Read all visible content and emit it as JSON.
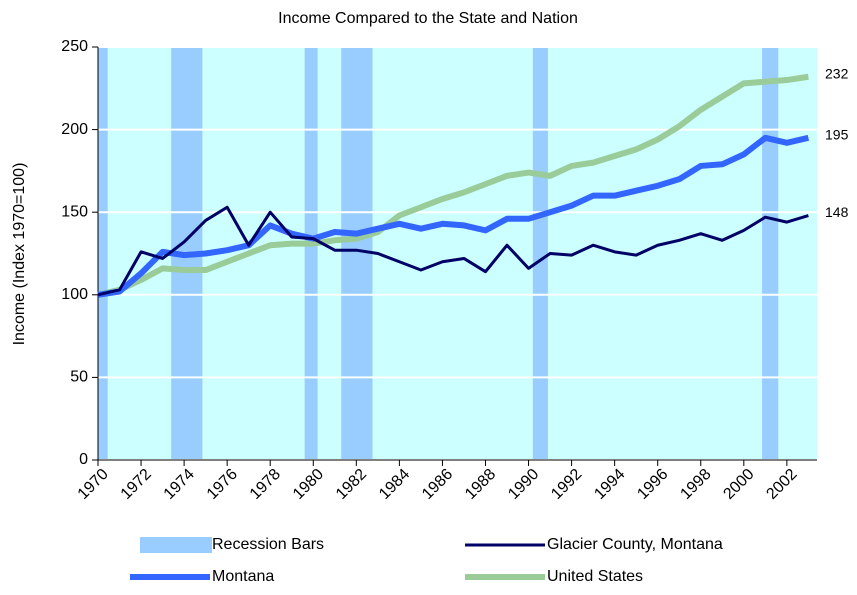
{
  "chart_data": {
    "type": "line",
    "title": "Income Compared to the State and Nation",
    "y_label": "Income (Index 1970=100)",
    "x": [
      1970,
      1971,
      1972,
      1973,
      1974,
      1975,
      1976,
      1977,
      1978,
      1979,
      1980,
      1981,
      1982,
      1983,
      1984,
      1985,
      1986,
      1987,
      1988,
      1989,
      1990,
      1991,
      1992,
      1993,
      1994,
      1995,
      1996,
      1997,
      1998,
      1999,
      2000,
      2001,
      2002,
      2003
    ],
    "xlim": [
      1970,
      2003.4
    ],
    "xticks": [
      1970,
      1972,
      1974,
      1976,
      1978,
      1980,
      1982,
      1984,
      1986,
      1988,
      1990,
      1992,
      1994,
      1996,
      1998,
      2000,
      2002
    ],
    "ylim": [
      0,
      250
    ],
    "yticks": [
      0,
      50,
      100,
      150,
      200,
      250
    ],
    "grid": true,
    "recessions": {
      "name": "Recession Bars",
      "color": "#99ccff",
      "ranges": [
        [
          1970,
          1970.45
        ],
        [
          1973.4,
          1974.85
        ],
        [
          1979.6,
          1980.2
        ],
        [
          1981.3,
          1982.75
        ],
        [
          1990.2,
          1990.9
        ],
        [
          2000.85,
          2001.6
        ]
      ]
    },
    "series": [
      {
        "name": "Glacier County, Montana",
        "color": "#000066",
        "width": 3,
        "values": [
          100,
          103,
          126,
          122,
          132,
          145,
          153,
          130,
          150,
          135,
          134,
          127,
          127,
          125,
          120,
          115,
          120,
          122,
          114,
          130,
          116,
          125,
          124,
          130,
          126,
          124,
          130,
          133,
          137,
          133,
          139,
          147,
          144,
          148
        ]
      },
      {
        "name": "Montana",
        "color": "#3366ff",
        "width": 6,
        "values": [
          100,
          102,
          113,
          126,
          124,
          125,
          127,
          130,
          142,
          137,
          134,
          138,
          137,
          140,
          143,
          140,
          143,
          142,
          139,
          146,
          146,
          150,
          154,
          160,
          160,
          163,
          166,
          170,
          178,
          179,
          185,
          195,
          192,
          195
        ]
      },
      {
        "name": "United States",
        "color": "#99cc99",
        "width": 6,
        "values": [
          100,
          103,
          109,
          116,
          115,
          115,
          120,
          125,
          130,
          131,
          131,
          133,
          134,
          138,
          148,
          153,
          158,
          162,
          167,
          172,
          174,
          172,
          178,
          180,
          184,
          188,
          194,
          202,
          212,
          220,
          228,
          229,
          230,
          232
        ]
      }
    ]
  }
}
